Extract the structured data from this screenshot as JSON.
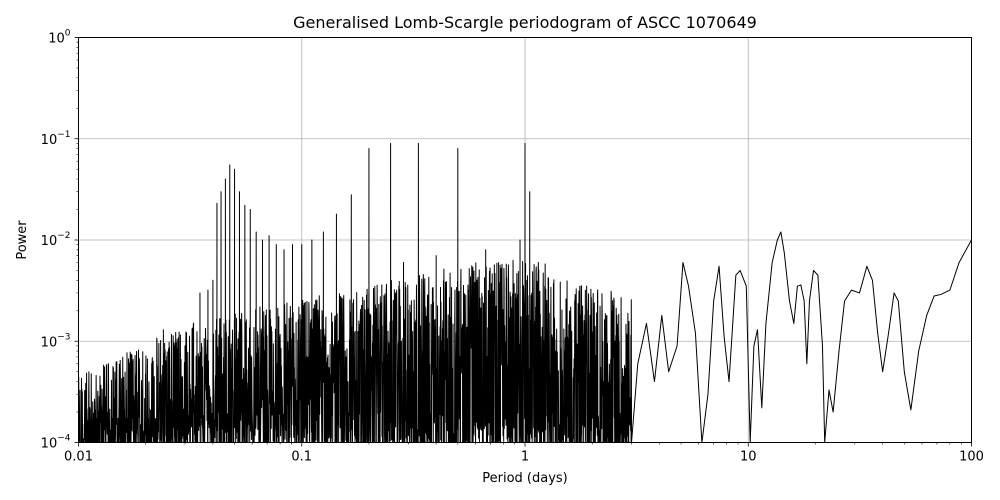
{
  "chart_data": {
    "type": "line",
    "title": "Generalised Lomb-Scargle periodogram of ASCC 1070649",
    "xlabel": "Period (days)",
    "ylabel": "Power",
    "xscale": "log",
    "yscale": "log",
    "xlim": [
      0.01,
      100
    ],
    "ylim": [
      0.0001,
      1
    ],
    "grid": true,
    "line_color": "#000000",
    "x_ticks": [
      {
        "value": 0.01,
        "label": "0.01"
      },
      {
        "value": 0.1,
        "label": "0.1"
      },
      {
        "value": 1,
        "label": "1"
      },
      {
        "value": 10,
        "label": "10"
      },
      {
        "value": 100,
        "label": "100"
      }
    ],
    "y_ticks": [
      {
        "value": 0.0001,
        "base": "10",
        "exp": "−4"
      },
      {
        "value": 0.001,
        "base": "10",
        "exp": "−3"
      },
      {
        "value": 0.01,
        "base": "10",
        "exp": "−2"
      },
      {
        "value": 0.1,
        "base": "10",
        "exp": "−1"
      },
      {
        "value": 1,
        "base": "10",
        "exp": "0"
      }
    ],
    "peaks": [
      {
        "x": 0.0417,
        "y": 0.023
      },
      {
        "x": 0.0435,
        "y": 0.03
      },
      {
        "x": 0.0455,
        "y": 0.04
      },
      {
        "x": 0.0476,
        "y": 0.055
      },
      {
        "x": 0.05,
        "y": 0.05
      },
      {
        "x": 0.0526,
        "y": 0.03
      },
      {
        "x": 0.0556,
        "y": 0.022
      },
      {
        "x": 0.0588,
        "y": 0.02
      },
      {
        "x": 0.0625,
        "y": 0.012
      },
      {
        "x": 0.0667,
        "y": 0.01
      },
      {
        "x": 0.0714,
        "y": 0.011
      },
      {
        "x": 0.0769,
        "y": 0.009
      },
      {
        "x": 0.0833,
        "y": 0.008
      },
      {
        "x": 0.0909,
        "y": 0.009
      },
      {
        "x": 0.1,
        "y": 0.009
      },
      {
        "x": 0.111,
        "y": 0.01
      },
      {
        "x": 0.125,
        "y": 0.012
      },
      {
        "x": 0.143,
        "y": 0.018
      },
      {
        "x": 0.1667,
        "y": 0.028
      },
      {
        "x": 0.2,
        "y": 0.08
      },
      {
        "x": 0.25,
        "y": 0.09
      },
      {
        "x": 0.333,
        "y": 0.09
      },
      {
        "x": 0.5,
        "y": 0.08
      },
      {
        "x": 1.0,
        "y": 0.09
      },
      {
        "x": 0.2857,
        "y": 0.006
      },
      {
        "x": 0.4,
        "y": 0.007
      },
      {
        "x": 0.6667,
        "y": 0.008
      },
      {
        "x": 0.95,
        "y": 0.01
      },
      {
        "x": 1.05,
        "y": 0.03
      },
      {
        "x": 0.035,
        "y": 0.003
      },
      {
        "x": 0.038,
        "y": 0.0032
      },
      {
        "x": 0.04,
        "y": 0.004
      },
      {
        "x": 0.024,
        "y": 0.0013
      },
      {
        "x": 0.027,
        "y": 0.0009
      },
      {
        "x": 0.03,
        "y": 0.0009
      },
      {
        "x": 0.018,
        "y": 0.0004
      }
    ],
    "tail": [
      [
        3.0,
        0.0001
      ],
      [
        3.2,
        0.0006
      ],
      [
        3.5,
        0.0015
      ],
      [
        3.8,
        0.0004
      ],
      [
        4.1,
        0.0018
      ],
      [
        4.4,
        0.0005
      ],
      [
        4.8,
        0.0009
      ],
      [
        5.1,
        0.006
      ],
      [
        5.4,
        0.0035
      ],
      [
        5.8,
        0.0012
      ],
      [
        6.2,
        0.0001
      ],
      [
        6.6,
        0.0003
      ],
      [
        7.0,
        0.0025
      ],
      [
        7.4,
        0.0055
      ],
      [
        7.8,
        0.0011
      ],
      [
        8.2,
        0.0004
      ],
      [
        8.8,
        0.0045
      ],
      [
        9.2,
        0.005
      ],
      [
        9.8,
        0.0035
      ],
      [
        10.2,
        0.0001
      ],
      [
        10.6,
        0.0009
      ],
      [
        11.0,
        0.0013
      ],
      [
        11.5,
        0.00022
      ],
      [
        12.0,
        0.0015
      ],
      [
        12.8,
        0.006
      ],
      [
        13.5,
        0.01
      ],
      [
        14.0,
        0.012
      ],
      [
        14.5,
        0.0075
      ],
      [
        15.3,
        0.0025
      ],
      [
        16.0,
        0.0015
      ],
      [
        16.6,
        0.0035
      ],
      [
        17.2,
        0.0036
      ],
      [
        17.8,
        0.0025
      ],
      [
        18.3,
        0.0006
      ],
      [
        18.8,
        0.0025
      ],
      [
        19.6,
        0.005
      ],
      [
        20.5,
        0.0045
      ],
      [
        21.5,
        0.0009
      ],
      [
        22.0,
        0.0001
      ],
      [
        23.0,
        0.00033
      ],
      [
        24.0,
        0.0002
      ],
      [
        25.5,
        0.0008
      ],
      [
        27.0,
        0.0025
      ],
      [
        29.0,
        0.0032
      ],
      [
        31.5,
        0.003
      ],
      [
        34.0,
        0.0055
      ],
      [
        36.0,
        0.004
      ],
      [
        38.0,
        0.0012
      ],
      [
        40.0,
        0.0005
      ],
      [
        42.5,
        0.0012
      ],
      [
        45.0,
        0.003
      ],
      [
        47.0,
        0.0025
      ],
      [
        50.0,
        0.0005
      ],
      [
        53.5,
        0.00021
      ],
      [
        58.0,
        0.0008
      ],
      [
        63.0,
        0.0018
      ],
      [
        68.0,
        0.0028
      ],
      [
        73.0,
        0.0029
      ],
      [
        80.0,
        0.0032
      ],
      [
        88.0,
        0.006
      ],
      [
        100.0,
        0.01
      ]
    ]
  }
}
